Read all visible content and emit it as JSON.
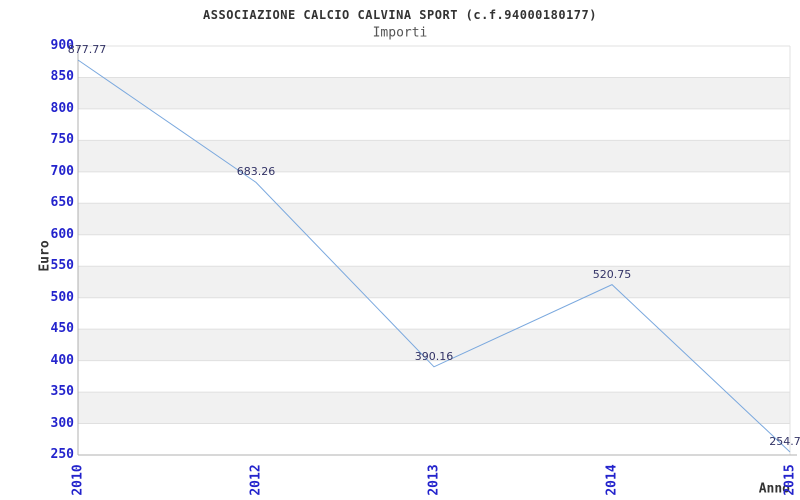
{
  "chart_data": {
    "type": "line",
    "title": "ASSOCIAZIONE CALCIO CALVINA SPORT (c.f.94000180177)",
    "subtitle": "Importi",
    "xlabel": "Anno",
    "ylabel": "Euro",
    "categories": [
      "2010",
      "2012",
      "2013",
      "2014",
      "2015"
    ],
    "series": [
      {
        "name": "Importi",
        "values": [
          877.77,
          683.26,
          390.16,
          520.75,
          254.7
        ]
      }
    ],
    "point_labels": [
      "877.77",
      "683.26",
      "390.16",
      "520.75",
      "254.7"
    ],
    "ylim": [
      250,
      900
    ],
    "yticks": [
      250,
      300,
      350,
      400,
      450,
      500,
      550,
      600,
      650,
      700,
      750,
      800,
      850,
      900
    ],
    "grid": "horizontal-bands",
    "legend": "none",
    "colors": {
      "line": "#7aa8de",
      "tick_label": "#2323cc",
      "point_label": "#333366",
      "title": "#333333",
      "subtitle": "#555555",
      "axis": "#b0b0b0",
      "grid_line": "#e0e0e0",
      "band": "#f1f1f1",
      "background": "#ffffff"
    }
  }
}
